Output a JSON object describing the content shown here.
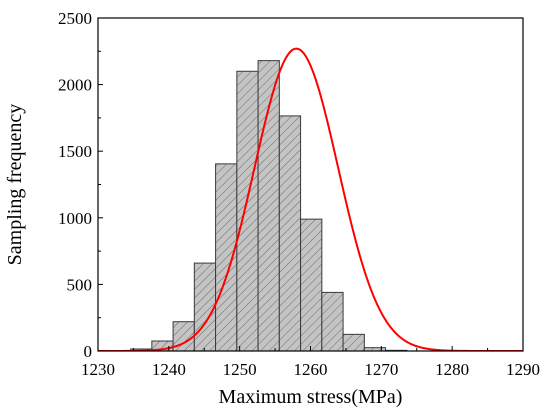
{
  "chart_data": {
    "type": "bar",
    "title": "",
    "xlabel": "Maximum stress(MPa)",
    "ylabel": "Sampling frequency",
    "xlim": [
      1230,
      1290
    ],
    "ylim": [
      0,
      2500
    ],
    "xticks": [
      1230,
      1240,
      1250,
      1260,
      1270,
      1280,
      1290
    ],
    "yticks": [
      0,
      500,
      1000,
      1500,
      2000,
      2500
    ],
    "xtick_labels": [
      "1230",
      "1240",
      "1250",
      "1260",
      "1270",
      "1280",
      "1290"
    ],
    "ytick_labels": [
      "0",
      "500",
      "1000",
      "1500",
      "2000",
      "2500"
    ],
    "bins": [
      {
        "x0": 1234.6,
        "x1": 1237.6,
        "value": 15
      },
      {
        "x0": 1237.6,
        "x1": 1240.6,
        "value": 75
      },
      {
        "x0": 1240.6,
        "x1": 1243.6,
        "value": 220
      },
      {
        "x0": 1243.6,
        "x1": 1246.6,
        "value": 660
      },
      {
        "x0": 1246.6,
        "x1": 1249.6,
        "value": 1405
      },
      {
        "x0": 1249.6,
        "x1": 1252.6,
        "value": 2100
      },
      {
        "x0": 1252.6,
        "x1": 1255.6,
        "value": 2180
      },
      {
        "x0": 1255.6,
        "x1": 1258.6,
        "value": 1765
      },
      {
        "x0": 1258.6,
        "x1": 1261.6,
        "value": 990
      },
      {
        "x0": 1261.6,
        "x1": 1264.6,
        "value": 440
      },
      {
        "x0": 1264.6,
        "x1": 1267.6,
        "value": 125
      },
      {
        "x0": 1267.6,
        "x1": 1270.6,
        "value": 25
      },
      {
        "x0": 1270.6,
        "x1": 1273.6,
        "value": 5
      }
    ],
    "fit_curve": {
      "type": "normal",
      "mean": 1258,
      "std": 5.9,
      "peak": 2270
    },
    "colors": {
      "bar_fill": "#c4c4c4",
      "bar_edge": "#3a3a3a",
      "hatch": "#6a6a6a",
      "curve": "#ff0000"
    },
    "grid": false,
    "legend": "none"
  }
}
